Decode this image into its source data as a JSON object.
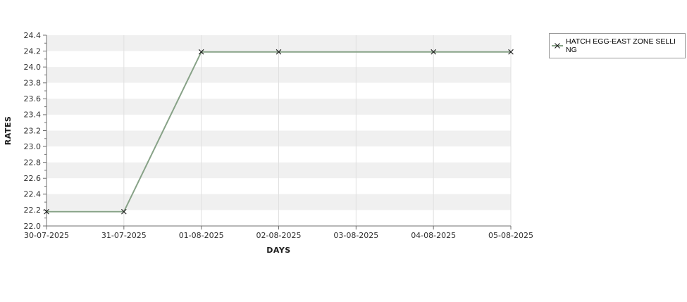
{
  "page": {
    "background": "#ffffff"
  },
  "chart_data": {
    "type": "line",
    "title": "",
    "xlabel": "DAYS",
    "ylabel": "RATES",
    "x_categories": [
      "30-07-2025",
      "31-07-2025",
      "01-08-2025",
      "02-08-2025",
      "03-08-2025",
      "04-08-2025",
      "05-08-2025"
    ],
    "y_tick_labels": [
      "22.0",
      "22.2",
      "22.4",
      "22.6",
      "22.8",
      "23.0",
      "23.2",
      "23.4",
      "23.6",
      "23.8",
      "24.0",
      "24.2",
      "24.4"
    ],
    "ylim": [
      22.0,
      24.4
    ],
    "ytick_step": 0.2,
    "grid": {
      "horizontal_bands": true,
      "vertical_gridlines": true
    },
    "legend_position": "outside-top-right",
    "series": [
      {
        "name": "HATCH EGG-EAST ZONE SELLING",
        "color": "#87a287",
        "marker": "x",
        "marker_color": "#1a1a1a",
        "points": [
          {
            "date": "30-07-2025",
            "rate": 22.18
          },
          {
            "date": "31-07-2025",
            "rate": 22.18
          },
          {
            "date": "01-08-2025",
            "rate": 24.19
          },
          {
            "date": "02-08-2025",
            "rate": 24.19
          },
          {
            "date": "04-08-2025",
            "rate": 24.19
          },
          {
            "date": "05-08-2025",
            "rate": 24.19
          }
        ]
      }
    ],
    "colors": {
      "band_alt": "#f0f0f0",
      "band_main": "#ffffff",
      "gridline": "#e0e0e0",
      "axis": "#6f6f6f",
      "tick_label": "#2e2e2e",
      "axis_title": "#1c1c1c"
    }
  },
  "legend": {
    "lines": [
      "HATCH EGG-EAST ZONE SELLI",
      "NG"
    ],
    "border_color": "#999999",
    "background": "#ffffff"
  }
}
